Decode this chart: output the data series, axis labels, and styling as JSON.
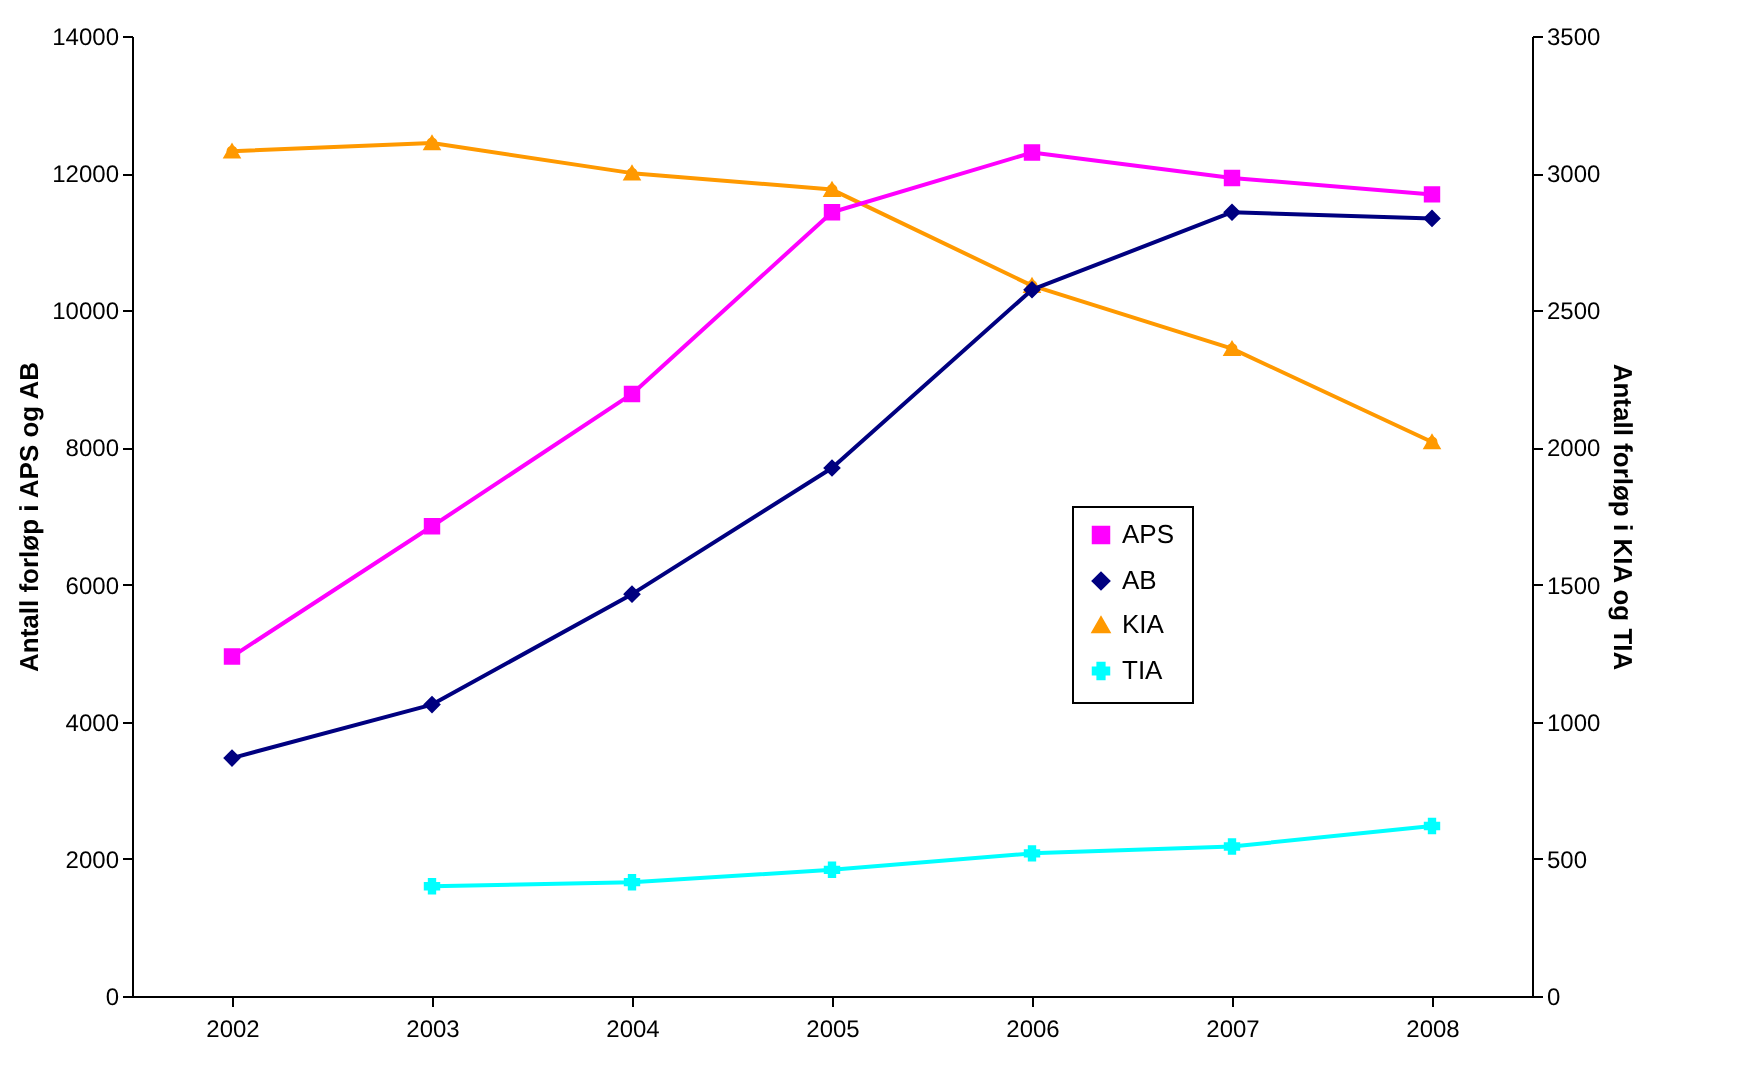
{
  "chart_data": {
    "type": "line",
    "categories": [
      "2002",
      "2003",
      "2004",
      "2005",
      "2006",
      "2007",
      "2008"
    ],
    "ylabel": "Antall forløp i APS og AB",
    "y2label": "Antall forløp i KIA og TIA",
    "ylim": [
      0,
      14000
    ],
    "yticks": [
      0,
      2000,
      4000,
      6000,
      8000,
      10000,
      12000,
      14000
    ],
    "y2lim": [
      0,
      3500
    ],
    "y2ticks": [
      0,
      500,
      1000,
      1500,
      2000,
      2500,
      3000,
      3500
    ],
    "legend": "right",
    "grid": false,
    "series": [
      {
        "name": "APS",
        "color": "#ff00ff",
        "marker": "square",
        "values": [
          4950,
          6850,
          8780,
          11430,
          12300,
          11930,
          11690
        ]
      },
      {
        "name": "AB",
        "color": "#000080",
        "marker": "diamond",
        "values": [
          3470,
          4250,
          5860,
          7700,
          10300,
          11430,
          11340
        ]
      },
      {
        "name": "KIA",
        "color": "#ff9900",
        "marker": "triangle",
        "axis": "y2",
        "values": [
          3080,
          3110,
          3000,
          2940,
          2590,
          2360,
          2020
        ]
      },
      {
        "name": "TIA",
        "color": "#00ffff",
        "marker": "cross",
        "axis": "y2",
        "values": [
          null,
          400,
          415,
          460,
          520,
          545,
          620
        ]
      }
    ]
  }
}
